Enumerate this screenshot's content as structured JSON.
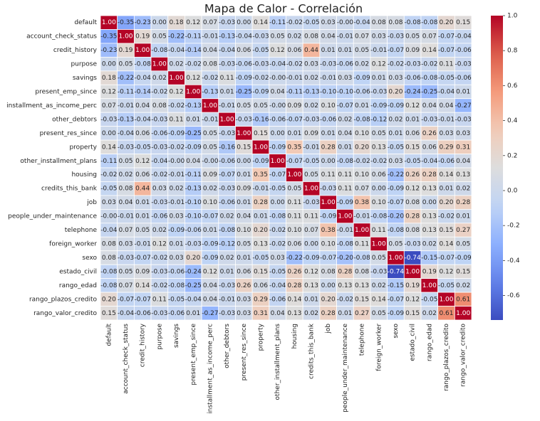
{
  "chart_data": {
    "type": "heatmap",
    "title": "Mapa de Calor - Correlación",
    "colormap": "coolwarm",
    "categories": [
      "default",
      "account_check_status",
      "credit_history",
      "purpose",
      "savings",
      "present_emp_since",
      "installment_as_income_perc",
      "other_debtors",
      "present_res_since",
      "property",
      "other_installment_plans",
      "housing",
      "credits_this_bank",
      "job",
      "people_under_maintenance",
      "telephone",
      "foreign_worker",
      "sexo",
      "estado_civil",
      "rango_edad",
      "rango_plazos_credito",
      "rango_valor_credito"
    ],
    "values": [
      [
        1.0,
        -0.35,
        -0.23,
        0.0,
        0.18,
        0.12,
        0.07,
        -0.03,
        0.0,
        0.14,
        -0.11,
        -0.02,
        -0.05,
        0.03,
        0,
        -0.04,
        0.08,
        0.08,
        -0.08,
        -0.08,
        0.2,
        0.15
      ],
      [
        -0.35,
        1.0,
        0.19,
        0.05,
        -0.22,
        -0.11,
        -0.01,
        -0.13,
        -0.04,
        -0.03,
        0.05,
        0.02,
        0.08,
        0.04,
        -0.01,
        0.07,
        0.03,
        -0.03,
        0.05,
        0.07,
        -0.07,
        -0.04
      ],
      [
        -0.23,
        0.19,
        1.0,
        -0.08,
        -0.04,
        -0.14,
        0.04,
        -0.04,
        0.06,
        -0.05,
        0.12,
        0.06,
        0.44,
        0.01,
        0.01,
        0.05,
        -0.01,
        -0.07,
        0.09,
        0.14,
        -0.07,
        -0.06
      ],
      [
        0.0,
        0.05,
        -0.08,
        1.0,
        0.02,
        -0.02,
        0.08,
        -0.03,
        -0.06,
        -0.03,
        -0.04,
        -0.02,
        0.03,
        -0.03,
        -0.06,
        0.02,
        0.12,
        -0.02,
        -0.03,
        -0.02,
        0.11,
        -0.03
      ],
      [
        0.18,
        -0.22,
        -0.04,
        0.02,
        1.0,
        0.12,
        -0.02,
        0.11,
        -0.09,
        -0.02,
        0,
        -0.01,
        0.02,
        -0.01,
        0.03,
        -0.09,
        0.01,
        0.03,
        -0.06,
        -0.08,
        -0.05,
        -0.06
      ],
      [
        0.12,
        -0.11,
        -0.14,
        -0.02,
        0.12,
        1.0,
        -0.13,
        0.01,
        -0.25,
        -0.09,
        0.04,
        -0.11,
        -0.13,
        -0.1,
        -0.1,
        -0.06,
        -0.03,
        0.2,
        -0.24,
        -0.25,
        -0.04,
        0.01
      ],
      [
        0.07,
        -0.01,
        0.04,
        0.08,
        -0.02,
        -0.13,
        1.0,
        -0.01,
        0.05,
        0.05,
        0,
        0.09,
        0.02,
        0.1,
        -0.07,
        0.01,
        -0.09,
        -0.09,
        0.12,
        0.04,
        0.04,
        -0.27
      ],
      [
        -0.03,
        -0.13,
        -0.04,
        -0.03,
        0.11,
        0.01,
        -0.01,
        1.0,
        -0.03,
        -0.16,
        -0.06,
        -0.07,
        -0.03,
        -0.06,
        0.02,
        -0.08,
        -0.12,
        0.02,
        0.01,
        -0.03,
        -0.01,
        -0.03
      ],
      [
        0.0,
        -0.04,
        0.06,
        -0.06,
        -0.09,
        -0.25,
        0.05,
        -0.03,
        1.0,
        0.15,
        0.0,
        0.01,
        0.09,
        0.01,
        0.04,
        0.1,
        0.05,
        0.01,
        0.06,
        0.26,
        0.03,
        0.03
      ],
      [
        0.14,
        -0.03,
        -0.05,
        -0.03,
        -0.02,
        -0.09,
        0.05,
        -0.16,
        0.15,
        1.0,
        -0.09,
        0.35,
        -0.01,
        0.28,
        0.01,
        0.2,
        0.13,
        -0.05,
        0.15,
        0.06,
        0.29,
        0.31
      ],
      [
        -0.11,
        0.05,
        0.12,
        -0.04,
        0,
        0.04,
        0,
        -0.06,
        0.0,
        -0.09,
        1.0,
        -0.07,
        -0.05,
        0.0,
        -0.08,
        -0.02,
        -0.02,
        0.03,
        -0.05,
        -0.04,
        -0.06,
        0.04
      ],
      [
        -0.02,
        0.02,
        0.06,
        -0.02,
        -0.01,
        -0.11,
        0.09,
        -0.07,
        0.01,
        0.35,
        -0.07,
        1.0,
        0.05,
        0.11,
        0.11,
        0.1,
        0.06,
        -0.22,
        0.26,
        0.28,
        0.14,
        0.13
      ],
      [
        -0.05,
        0.08,
        0.44,
        0.03,
        0.02,
        -0.13,
        0.02,
        -0.03,
        0.09,
        -0.01,
        -0.05,
        0.05,
        1.0,
        -0.03,
        0.11,
        0.07,
        0.0,
        -0.09,
        0.12,
        0.13,
        0.01,
        0.02
      ],
      [
        0.03,
        0.04,
        0.01,
        -0.03,
        -0.01,
        -0.1,
        0.1,
        -0.06,
        0.01,
        0.28,
        0.0,
        0.11,
        -0.03,
        1.0,
        -0.09,
        0.38,
        0.1,
        -0.07,
        0.08,
        0.0,
        0.2,
        0.28
      ],
      [
        0,
        -0.01,
        0.01,
        -0.06,
        0.03,
        -0.1,
        -0.07,
        0.02,
        0.04,
        0.01,
        -0.08,
        0.11,
        0.11,
        -0.09,
        1.0,
        -0.01,
        -0.08,
        -0.2,
        0.28,
        0.13,
        -0.02,
        0.01
      ],
      [
        -0.04,
        0.07,
        0.05,
        0.02,
        -0.09,
        -0.06,
        0.01,
        -0.08,
        0.1,
        0.2,
        -0.02,
        0.1,
        0.07,
        0.38,
        -0.01,
        1.0,
        0.11,
        -0.08,
        0.08,
        0.13,
        0.15,
        0.27
      ],
      [
        0.08,
        0.03,
        -0.01,
        0.12,
        0.01,
        -0.03,
        -0.09,
        -0.12,
        0.05,
        0.13,
        -0.02,
        0.06,
        0.0,
        0.1,
        -0.08,
        0.11,
        1.0,
        0.05,
        -0.03,
        0.02,
        0.14,
        0.05
      ],
      [
        0.08,
        -0.03,
        -0.07,
        -0.02,
        0.03,
        0.2,
        -0.09,
        0.02,
        0.01,
        -0.05,
        0.03,
        -0.22,
        -0.09,
        -0.07,
        -0.2,
        -0.08,
        0.05,
        1.0,
        -0.74,
        -0.15,
        -0.07,
        -0.09
      ],
      [
        -0.08,
        0.05,
        0.09,
        -0.03,
        -0.06,
        -0.24,
        0.12,
        0.01,
        0.06,
        0.15,
        -0.05,
        0.26,
        0.12,
        0.08,
        0.28,
        0.08,
        -0.03,
        -0.74,
        1.0,
        0.19,
        0.12,
        0.15
      ],
      [
        -0.08,
        0.07,
        0.14,
        -0.02,
        -0.08,
        -0.25,
        0.04,
        -0.03,
        0.26,
        0.06,
        -0.04,
        0.28,
        0.13,
        0.0,
        0.13,
        0.13,
        0.02,
        -0.15,
        0.19,
        1.0,
        -0.05,
        0.02
      ],
      [
        0.2,
        -0.07,
        -0.07,
        0.11,
        -0.05,
        -0.04,
        0.04,
        -0.01,
        0.03,
        0.29,
        -0.06,
        0.14,
        0.01,
        0.2,
        -0.02,
        0.15,
        0.14,
        -0.07,
        0.12,
        -0.05,
        1.0,
        0.61
      ],
      [
        0.15,
        -0.04,
        -0.06,
        -0.03,
        -0.06,
        0.01,
        -0.27,
        -0.03,
        0.03,
        0.31,
        0.04,
        0.13,
        0.02,
        0.28,
        0.01,
        0.27,
        0.05,
        -0.09,
        0.15,
        0.02,
        0.61,
        1.0
      ]
    ],
    "value_labels": [
      [
        "1.00",
        "-0.35",
        "-0.23",
        "0.00",
        "0.18",
        "0.12",
        "0.07",
        "-0.03",
        "0.00",
        "0.14",
        "-0.11",
        "-0.02",
        "-0.05",
        "0.03",
        "-0.00",
        "-0.04",
        "0.08",
        "0.08",
        "-0.08",
        "-0.08",
        "0.20",
        "0.15"
      ],
      [
        "-0.35",
        "1.00",
        "0.19",
        "0.05",
        "-0.22",
        "-0.11",
        "-0.01",
        "-0.13",
        "-0.04",
        "-0.03",
        "0.05",
        "0.02",
        "0.08",
        "0.04",
        "-0.01",
        "0.07",
        "0.03",
        "-0.03",
        "0.05",
        "0.07",
        "-0.07",
        "-0.04"
      ],
      [
        "-0.23",
        "0.19",
        "1.00",
        "-0.08",
        "-0.04",
        "-0.14",
        "0.04",
        "-0.04",
        "0.06",
        "-0.05",
        "0.12",
        "0.06",
        "0.44",
        "0.01",
        "0.01",
        "0.05",
        "-0.01",
        "-0.07",
        "0.09",
        "0.14",
        "-0.07",
        "-0.06"
      ],
      [
        "0.00",
        "0.05",
        "-0.08",
        "1.00",
        "0.02",
        "-0.02",
        "0.08",
        "-0.03",
        "-0.06",
        "-0.03",
        "-0.04",
        "-0.02",
        "0.03",
        "-0.03",
        "-0.06",
        "0.02",
        "0.12",
        "-0.02",
        "-0.03",
        "-0.02",
        "0.11",
        "-0.03"
      ],
      [
        "0.18",
        "-0.22",
        "-0.04",
        "0.02",
        "1.00",
        "0.12",
        "-0.02",
        "0.11",
        "-0.09",
        "-0.02",
        "-0.00",
        "-0.01",
        "0.02",
        "-0.01",
        "0.03",
        "-0.09",
        "0.01",
        "0.03",
        "-0.06",
        "-0.08",
        "-0.05",
        "-0.06"
      ],
      [
        "0.12",
        "-0.11",
        "-0.14",
        "-0.02",
        "0.12",
        "1.00",
        "-0.13",
        "0.01",
        "-0.25",
        "-0.09",
        "0.04",
        "-0.11",
        "-0.13",
        "-0.10",
        "-0.10",
        "-0.06",
        "-0.03",
        "0.20",
        "-0.24",
        "-0.25",
        "-0.04",
        "0.01"
      ],
      [
        "0.07",
        "-0.01",
        "0.04",
        "0.08",
        "-0.02",
        "-0.13",
        "1.00",
        "-0.01",
        "0.05",
        "0.05",
        "-0.00",
        "0.09",
        "0.02",
        "0.10",
        "-0.07",
        "0.01",
        "-0.09",
        "-0.09",
        "0.12",
        "0.04",
        "0.04",
        "-0.27"
      ],
      [
        "-0.03",
        "-0.13",
        "-0.04",
        "-0.03",
        "0.11",
        "0.01",
        "-0.01",
        "1.00",
        "-0.03",
        "-0.16",
        "-0.06",
        "-0.07",
        "-0.03",
        "-0.06",
        "0.02",
        "-0.08",
        "-0.12",
        "0.02",
        "0.01",
        "-0.03",
        "-0.01",
        "-0.03"
      ],
      [
        "0.00",
        "-0.04",
        "0.06",
        "-0.06",
        "-0.09",
        "-0.25",
        "0.05",
        "-0.03",
        "1.00",
        "0.15",
        "0.00",
        "0.01",
        "0.09",
        "0.01",
        "0.04",
        "0.10",
        "0.05",
        "0.01",
        "0.06",
        "0.26",
        "0.03",
        "0.03"
      ],
      [
        "0.14",
        "-0.03",
        "-0.05",
        "-0.03",
        "-0.02",
        "-0.09",
        "0.05",
        "-0.16",
        "0.15",
        "1.00",
        "-0.09",
        "0.35",
        "-0.01",
        "0.28",
        "0.01",
        "0.20",
        "0.13",
        "-0.05",
        "0.15",
        "0.06",
        "0.29",
        "0.31"
      ],
      [
        "-0.11",
        "0.05",
        "0.12",
        "-0.04",
        "-0.00",
        "0.04",
        "-0.00",
        "-0.06",
        "0.00",
        "-0.09",
        "1.00",
        "-0.07",
        "-0.05",
        "0.00",
        "-0.08",
        "-0.02",
        "-0.02",
        "0.03",
        "-0.05",
        "-0.04",
        "-0.06",
        "0.04"
      ],
      [
        "-0.02",
        "0.02",
        "0.06",
        "-0.02",
        "-0.01",
        "-0.11",
        "0.09",
        "-0.07",
        "0.01",
        "0.35",
        "-0.07",
        "1.00",
        "0.05",
        "0.11",
        "0.11",
        "0.10",
        "0.06",
        "-0.22",
        "0.26",
        "0.28",
        "0.14",
        "0.13"
      ],
      [
        "-0.05",
        "0.08",
        "0.44",
        "0.03",
        "0.02",
        "-0.13",
        "0.02",
        "-0.03",
        "0.09",
        "-0.01",
        "-0.05",
        "0.05",
        "1.00",
        "-0.03",
        "0.11",
        "0.07",
        "0.00",
        "-0.09",
        "0.12",
        "0.13",
        "0.01",
        "0.02"
      ],
      [
        "0.03",
        "0.04",
        "0.01",
        "-0.03",
        "-0.01",
        "-0.10",
        "0.10",
        "-0.06",
        "0.01",
        "0.28",
        "0.00",
        "0.11",
        "-0.03",
        "1.00",
        "-0.09",
        "0.38",
        "0.10",
        "-0.07",
        "0.08",
        "0.00",
        "0.20",
        "0.28"
      ],
      [
        "-0.00",
        "-0.01",
        "0.01",
        "-0.06",
        "0.03",
        "-0.10",
        "-0.07",
        "0.02",
        "0.04",
        "0.01",
        "-0.08",
        "0.11",
        "0.11",
        "-0.09",
        "1.00",
        "-0.01",
        "-0.08",
        "-0.20",
        "0.28",
        "0.13",
        "-0.02",
        "0.01"
      ],
      [
        "-0.04",
        "0.07",
        "0.05",
        "0.02",
        "-0.09",
        "-0.06",
        "0.01",
        "-0.08",
        "0.10",
        "0.20",
        "-0.02",
        "0.10",
        "0.07",
        "0.38",
        "-0.01",
        "1.00",
        "0.11",
        "-0.08",
        "0.08",
        "0.13",
        "0.15",
        "0.27"
      ],
      [
        "0.08",
        "0.03",
        "-0.01",
        "0.12",
        "0.01",
        "-0.03",
        "-0.09",
        "-0.12",
        "0.05",
        "0.13",
        "-0.02",
        "0.06",
        "0.00",
        "0.10",
        "-0.08",
        "0.11",
        "1.00",
        "0.05",
        "-0.03",
        "0.02",
        "0.14",
        "0.05"
      ],
      [
        "0.08",
        "-0.03",
        "-0.07",
        "-0.02",
        "0.03",
        "0.20",
        "-0.09",
        "0.02",
        "0.01",
        "-0.05",
        "0.03",
        "-0.22",
        "-0.09",
        "-0.07",
        "-0.20",
        "-0.08",
        "0.05",
        "1.00",
        "-0.74",
        "-0.15",
        "-0.07",
        "-0.09"
      ],
      [
        "-0.08",
        "0.05",
        "0.09",
        "-0.03",
        "-0.06",
        "-0.24",
        "0.12",
        "0.01",
        "0.06",
        "0.15",
        "-0.05",
        "0.26",
        "0.12",
        "0.08",
        "0.28",
        "0.08",
        "-0.03",
        "-0.74",
        "1.00",
        "0.19",
        "0.12",
        "0.15"
      ],
      [
        "-0.08",
        "0.07",
        "0.14",
        "-0.02",
        "-0.08",
        "-0.25",
        "0.04",
        "-0.03",
        "0.26",
        "0.06",
        "-0.04",
        "0.28",
        "0.13",
        "0.00",
        "0.13",
        "0.13",
        "0.02",
        "-0.15",
        "0.19",
        "1.00",
        "-0.05",
        "0.02"
      ],
      [
        "0.20",
        "-0.07",
        "-0.07",
        "0.11",
        "-0.05",
        "-0.04",
        "0.04",
        "-0.01",
        "0.03",
        "0.29",
        "-0.06",
        "0.14",
        "0.01",
        "0.20",
        "-0.02",
        "0.15",
        "0.14",
        "-0.07",
        "0.12",
        "-0.05",
        "1.00",
        "0.61"
      ],
      [
        "0.15",
        "-0.04",
        "-0.06",
        "-0.03",
        "-0.06",
        "0.01",
        "-0.27",
        "-0.03",
        "0.03",
        "0.31",
        "0.04",
        "0.13",
        "0.02",
        "0.28",
        "0.01",
        "0.27",
        "0.05",
        "-0.09",
        "0.15",
        "0.02",
        "0.61",
        "1.00"
      ]
    ],
    "clim": [
      -0.74,
      1
    ],
    "cticks": [
      -0.6,
      -0.4,
      -0.2,
      {
        "value": 0,
        "label": "0.0"
      },
      0.2,
      0.4,
      0.6,
      0.8,
      {
        "value": 1,
        "label": "1.0"
      }
    ]
  }
}
